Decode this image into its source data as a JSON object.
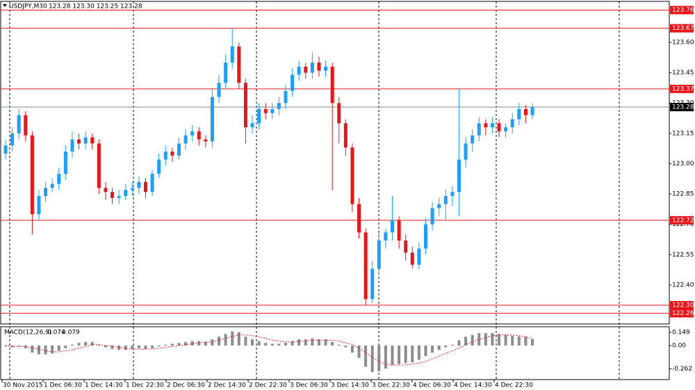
{
  "chart_data": [
    {
      "type": "candlestick",
      "title": "USDJPY,M30",
      "subtitle": "123.28 123.30 123.25 123.28",
      "open": [
        123.05,
        123.09,
        123.15,
        123.24,
        123.14,
        122.75,
        122.84,
        122.88,
        122.9,
        122.95,
        123.06,
        123.12,
        123.1,
        123.13,
        123.1,
        122.88,
        122.86,
        122.83,
        122.84,
        122.87,
        122.88,
        122.91,
        122.86,
        122.95,
        123.02,
        123.06,
        123.04,
        123.1,
        123.14,
        123.16,
        123.12,
        123.11,
        123.33,
        123.4,
        123.5,
        123.58,
        123.4,
        123.18,
        123.2,
        123.27,
        123.25,
        123.27,
        123.3,
        123.36,
        123.44,
        123.48,
        123.45,
        123.5,
        123.46,
        123.48,
        123.3,
        123.2,
        123.08,
        122.8,
        122.66,
        122.33,
        122.48,
        122.62,
        122.66,
        122.72,
        122.62,
        122.56,
        122.5,
        122.58,
        122.7,
        122.78,
        122.8,
        122.84,
        122.86,
        123.02,
        123.1,
        123.14,
        123.2,
        123.18,
        123.2,
        123.16,
        123.18,
        123.22,
        123.27,
        123.24
      ],
      "high": [
        123.12,
        123.18,
        123.27,
        123.26,
        123.16,
        122.87,
        122.91,
        122.93,
        122.98,
        123.09,
        123.16,
        123.15,
        123.16,
        123.15,
        123.12,
        122.91,
        122.88,
        122.87,
        122.9,
        122.91,
        122.94,
        122.93,
        122.97,
        123.05,
        123.09,
        123.08,
        123.13,
        123.17,
        123.19,
        123.18,
        123.14,
        123.37,
        123.44,
        123.54,
        123.67,
        123.6,
        123.42,
        123.24,
        123.3,
        123.3,
        123.3,
        123.33,
        123.39,
        123.47,
        123.51,
        123.5,
        123.55,
        123.53,
        123.51,
        123.5,
        123.33,
        123.22,
        123.1,
        122.83,
        122.68,
        122.52,
        122.66,
        122.68,
        122.84,
        122.74,
        122.65,
        122.59,
        122.61,
        122.73,
        122.81,
        122.83,
        122.87,
        122.89,
        123.37,
        123.13,
        123.17,
        123.23,
        123.22,
        123.23,
        123.22,
        123.2,
        123.25,
        123.3,
        123.29,
        123.3
      ],
      "low": [
        123.02,
        123.06,
        123.12,
        123.11,
        122.65,
        122.72,
        122.81,
        122.86,
        122.87,
        122.92,
        123.03,
        123.07,
        123.07,
        123.07,
        122.85,
        122.82,
        122.8,
        122.8,
        122.82,
        122.84,
        122.85,
        122.83,
        122.84,
        122.93,
        122.99,
        123.01,
        123.02,
        123.07,
        123.11,
        123.09,
        123.08,
        123.08,
        123.3,
        123.37,
        123.47,
        123.37,
        123.1,
        123.15,
        123.17,
        123.22,
        123.22,
        123.24,
        123.27,
        123.33,
        123.41,
        123.42,
        123.42,
        123.43,
        123.43,
        122.87,
        123.1,
        123.04,
        122.76,
        122.63,
        122.3,
        122.31,
        122.45,
        122.58,
        122.62,
        122.58,
        122.52,
        122.48,
        122.48,
        122.55,
        122.67,
        122.74,
        122.72,
        122.79,
        122.74,
        122.98,
        123.06,
        123.11,
        123.14,
        123.15,
        123.13,
        123.13,
        123.15,
        123.19,
        123.2,
        123.22
      ],
      "close": [
        123.09,
        123.15,
        123.24,
        123.14,
        122.75,
        122.84,
        122.88,
        122.9,
        122.95,
        123.06,
        123.12,
        123.1,
        123.13,
        123.1,
        122.88,
        122.86,
        122.83,
        122.84,
        122.87,
        122.88,
        122.91,
        122.86,
        122.95,
        123.02,
        123.06,
        123.04,
        123.1,
        123.14,
        123.16,
        123.12,
        123.11,
        123.33,
        123.4,
        123.5,
        123.58,
        123.4,
        123.18,
        123.2,
        123.27,
        123.25,
        123.27,
        123.3,
        123.36,
        123.44,
        123.48,
        123.45,
        123.5,
        123.46,
        123.48,
        123.3,
        123.2,
        123.08,
        122.8,
        122.66,
        122.33,
        122.48,
        122.62,
        122.66,
        122.72,
        122.62,
        122.56,
        122.5,
        122.58,
        122.7,
        122.78,
        122.8,
        122.84,
        122.86,
        123.02,
        123.1,
        123.14,
        123.2,
        123.18,
        123.2,
        123.16,
        123.18,
        123.22,
        123.27,
        123.24,
        123.28
      ],
      "bull_color": "#1e9fff",
      "bear_color": "#e8161b",
      "ylim": [
        122.207,
        123.803
      ],
      "yticks": [
        {
          "value": 123.6,
          "label": "123.60"
        },
        123.45,
        {
          "value": 123.3,
          "label": "123.30"
        },
        123.15,
        {
          "value": 123.0,
          "label": "123.00"
        },
        122.85,
        {
          "value": 122.7,
          "label": "122.70"
        },
        122.55,
        {
          "value": 122.4,
          "label": "122.40"
        }
      ],
      "levels": [
        123.76,
        123.67,
        123.37,
        122.72,
        {
          "value": 122.3,
          "label": "122.30"
        },
        122.26
      ],
      "level_color": "#e8161b",
      "current": 123.28,
      "current_color": "#7a8a8a",
      "xlabels": [
        "30 Nov 2015",
        "1 Dec 06:30",
        "1 Dec 14:30",
        "1 Dec 22:30",
        "2 Dec 06:30",
        "2 Dec 14:30",
        "2 Dec 22:30",
        "3 Dec 06:30",
        "3 Dec 14:30",
        "3 Dec 22:30",
        "4 Dec 06:30",
        "4 Dec 14:30",
        "4 Dec 22:30"
      ]
    },
    {
      "type": "macd",
      "title": "MACD(12,26,9)",
      "histogram": [
        -0.01,
        -0.02,
        -0.01,
        -0.03,
        -0.08,
        -0.1,
        -0.1,
        -0.09,
        -0.06,
        -0.03,
        0.01,
        0.03,
        0.04,
        0.04,
        0.01,
        -0.02,
        -0.04,
        -0.05,
        -0.05,
        -0.04,
        -0.03,
        -0.04,
        -0.03,
        -0.01,
        0.01,
        0.02,
        0.03,
        0.04,
        0.05,
        0.05,
        0.04,
        0.07,
        0.1,
        0.13,
        0.16,
        0.15,
        0.1,
        0.07,
        0.05,
        0.03,
        0.02,
        0.02,
        0.03,
        0.05,
        0.07,
        0.07,
        0.08,
        0.07,
        0.07,
        0.04,
        0.01,
        -0.02,
        -0.08,
        -0.14,
        -0.24,
        -0.3,
        -0.29,
        -0.26,
        -0.22,
        -0.21,
        -0.2,
        -0.19,
        -0.16,
        -0.12,
        -0.08,
        -0.05,
        -0.02,
        0.01,
        0.06,
        0.1,
        0.12,
        0.14,
        0.14,
        0.14,
        0.13,
        0.12,
        0.11,
        0.1,
        0.1,
        0.074
      ],
      "signal": [
        0.0,
        -0.01,
        -0.01,
        -0.01,
        -0.03,
        -0.04,
        -0.06,
        -0.07,
        -0.07,
        -0.06,
        -0.05,
        -0.03,
        -0.01,
        0.01,
        0.01,
        0.0,
        -0.01,
        -0.02,
        -0.03,
        -0.04,
        -0.04,
        -0.04,
        -0.04,
        -0.03,
        -0.02,
        -0.01,
        0.0,
        0.01,
        0.02,
        0.03,
        0.04,
        0.04,
        0.06,
        0.08,
        0.1,
        0.12,
        0.12,
        0.11,
        0.1,
        0.08,
        0.06,
        0.05,
        0.04,
        0.04,
        0.05,
        0.05,
        0.06,
        0.06,
        0.06,
        0.06,
        0.05,
        0.03,
        0.01,
        -0.03,
        -0.08,
        -0.13,
        -0.18,
        -0.21,
        -0.22,
        -0.22,
        -0.22,
        -0.21,
        -0.2,
        -0.18,
        -0.15,
        -0.12,
        -0.09,
        -0.06,
        -0.03,
        0.01,
        0.04,
        0.07,
        0.09,
        0.11,
        0.12,
        0.12,
        0.12,
        0.11,
        0.1,
        0.079
      ],
      "histogram_color": "#8c8c8c",
      "signal_color": "#e8161b",
      "ylim": [
        -0.384,
        0.212
      ],
      "yticks": [
        0.149,
        {
          "value": 0,
          "label": "0.00"
        },
        -0.262
      ]
    }
  ]
}
